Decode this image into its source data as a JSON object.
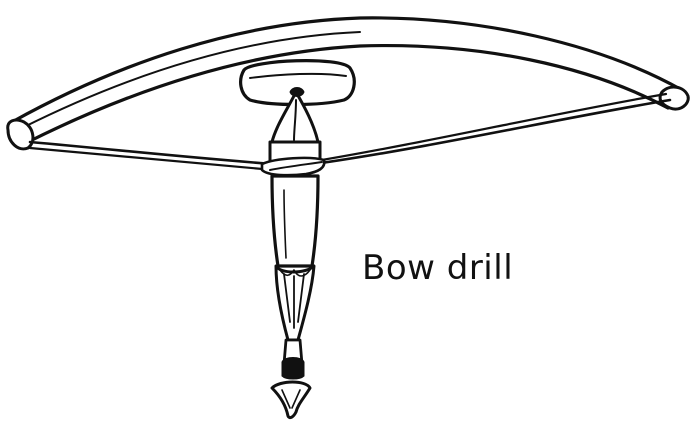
{
  "caption": "Bow drill",
  "ink_color": "#111111",
  "background_color": "#ffffff",
  "parts": [
    "bow",
    "bowstring",
    "handhold",
    "spindle",
    "drill-point"
  ]
}
